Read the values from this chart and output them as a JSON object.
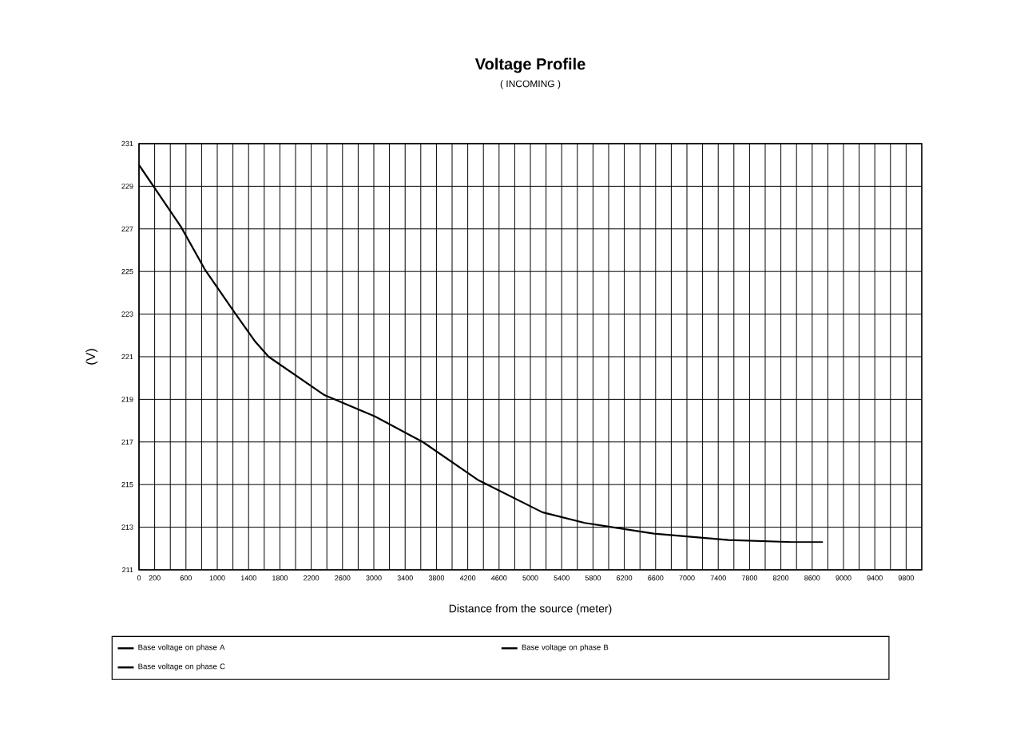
{
  "chart_data": {
    "type": "line",
    "title": "Voltage Profile",
    "subtitle": "( INCOMING )",
    "xlabel": "Distance from the source (meter)",
    "ylabel": "(V)",
    "x": [
      0,
      536,
      841,
      1216,
      1487,
      1656,
      2369,
      3014,
      3625,
      4338,
      5153,
      5696,
      6578,
      7529,
      8344,
      8737
    ],
    "series": [
      {
        "name": "Base voltage on phase A",
        "color": "#000000",
        "values": [
          230.0,
          227.1,
          225.1,
          223.1,
          221.7,
          221.0,
          219.2,
          218.2,
          217.0,
          215.2,
          213.7,
          213.2,
          212.7,
          212.4,
          212.3,
          212.3
        ]
      },
      {
        "name": "Base voltage on phase B",
        "color": "#000000",
        "values": [
          null,
          null,
          null,
          null,
          null,
          null,
          null,
          null,
          null,
          null,
          null,
          null,
          null,
          null,
          null,
          null
        ]
      },
      {
        "name": "Base voltage on phase C",
        "color": "#000000",
        "values": [
          null,
          null,
          null,
          null,
          null,
          null,
          null,
          null,
          null,
          null,
          null,
          null,
          null,
          null,
          null,
          null
        ]
      }
    ],
    "xlim": [
      0,
      10000
    ],
    "ylim": [
      211,
      231
    ],
    "xticks": [
      0,
      200,
      {
        "value": 400,
        "label": null
      },
      600,
      {
        "value": 800,
        "label": null
      },
      1000,
      {
        "value": 1200,
        "label": null
      },
      1400,
      {
        "value": 1600,
        "label": null
      },
      1800,
      {
        "value": 2000,
        "label": null
      },
      2200,
      {
        "value": 2400,
        "label": null
      },
      2600,
      {
        "value": 2800,
        "label": null
      },
      3000,
      {
        "value": 3200,
        "label": null
      },
      3400,
      {
        "value": 3600,
        "label": null
      },
      3800,
      {
        "value": 4000,
        "label": null
      },
      4200,
      {
        "value": 4400,
        "label": null
      },
      4600,
      {
        "value": 4800,
        "label": null
      },
      5000,
      {
        "value": 5200,
        "label": null
      },
      5400,
      {
        "value": 5600,
        "label": null
      },
      5800,
      {
        "value": 6000,
        "label": null
      },
      6200,
      {
        "value": 6400,
        "label": null
      },
      6600,
      {
        "value": 6800,
        "label": null
      },
      7000,
      {
        "value": 7200,
        "label": null
      },
      7400,
      {
        "value": 7600,
        "label": null
      },
      7800,
      {
        "value": 8000,
        "label": null
      },
      8200,
      {
        "value": 8400,
        "label": null
      },
      8600,
      {
        "value": 8800,
        "label": null
      },
      9000,
      {
        "value": 9200,
        "label": null
      },
      9400,
      {
        "value": 9600,
        "label": null
      },
      9800
    ],
    "yticks": [
      211,
      213,
      215,
      217,
      219,
      221,
      223,
      225,
      227,
      229,
      231
    ],
    "grid": true,
    "legend": "bottom",
    "line_style": "solid"
  }
}
